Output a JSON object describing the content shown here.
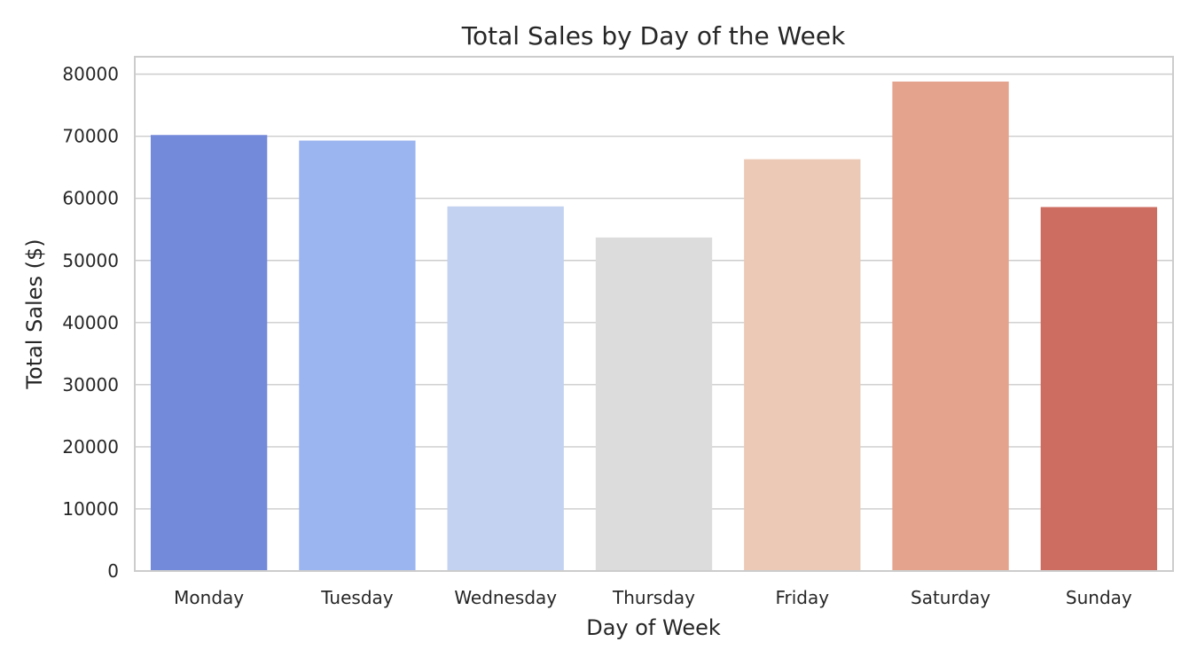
{
  "chart_data": {
    "type": "bar",
    "title": "Total Sales by Day of the Week",
    "xlabel": "Day of Week",
    "ylabel": "Total Sales ($)",
    "categories": [
      "Monday",
      "Tuesday",
      "Wednesday",
      "Thursday",
      "Friday",
      "Saturday",
      "Sunday"
    ],
    "values": [
      70200,
      69300,
      58700,
      53700,
      66300,
      78800,
      58600
    ],
    "colors": [
      "#7389da",
      "#9bb5f0",
      "#c2d2f0",
      "#dcdcdc",
      "#ecc8b6",
      "#e4a38c",
      "#cd6c60"
    ],
    "ylim": [
      0,
      82800
    ],
    "yticks": [
      0,
      10000,
      20000,
      30000,
      40000,
      50000,
      60000,
      70000,
      80000
    ],
    "grid": true,
    "legend": "none"
  }
}
